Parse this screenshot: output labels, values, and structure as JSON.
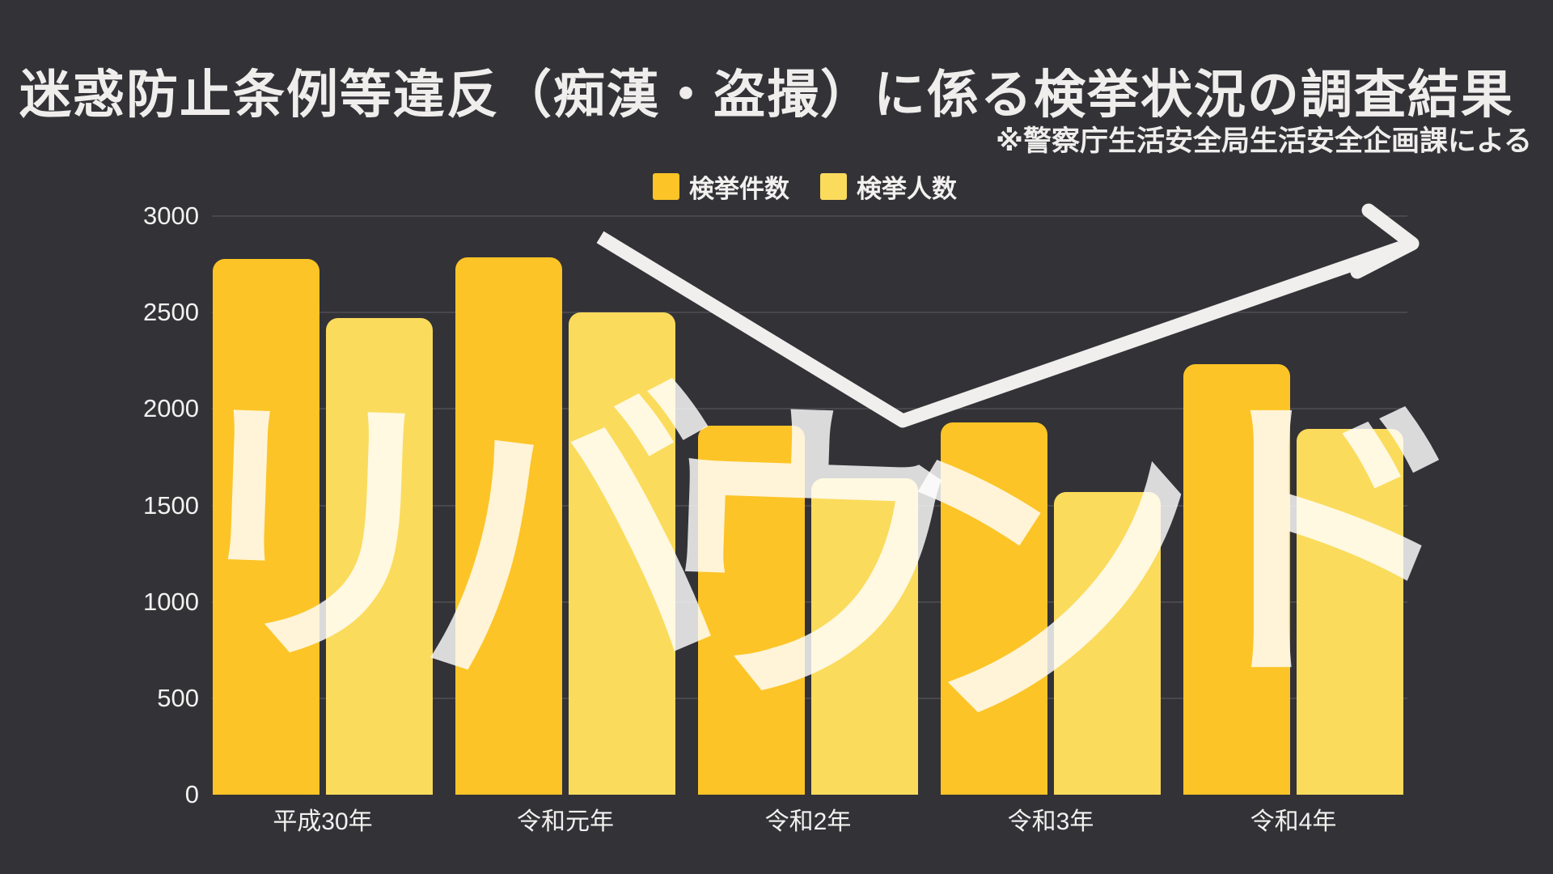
{
  "title": "迷惑防止条例等違反（痴漢・盗撮）に係る検挙状況の調査結果",
  "subtitle": "※警察庁生活安全局生活安全企画課による",
  "watermark": {
    "text": "リバウンド",
    "color": "rgba(255,255,255,0.82)"
  },
  "legend": [
    {
      "label": "検挙件数",
      "color": "#fcc426"
    },
    {
      "label": "検挙人数",
      "color": "#fbdb5c"
    }
  ],
  "colors": {
    "background": "#333237",
    "text": "#efeeec",
    "gridline": "#48474c",
    "arrow": "#f0efed",
    "series1": "#fcc426",
    "series2": "#fbdb5c"
  },
  "chart_data": {
    "type": "bar",
    "title": "迷惑防止条例等違反（痴漢・盗撮）に係る検挙状況の調査結果",
    "subtitle": "※警察庁生活安全局生活安全企画課による",
    "categories": [
      "平成30年",
      "令和元年",
      "令和2年",
      "令和3年",
      "令和4年"
    ],
    "series": [
      {
        "name": "検挙件数",
        "color": "#fcc426",
        "values": [
          2777,
          2788,
          1915,
          1931,
          2233
        ]
      },
      {
        "name": "検挙人数",
        "color": "#fbdb5c",
        "values": [
          2471,
          2500,
          1640,
          1570,
          1895
        ]
      }
    ],
    "ylim": [
      0,
      3000
    ],
    "yticks": [
      0,
      500,
      1000,
      1500,
      2000,
      2500,
      3000
    ],
    "xlabel": "",
    "ylabel": "",
    "grid": true,
    "legend_position": "top-center",
    "annotations": {
      "watermark_text": "リバウンド",
      "trend_arrow": "white arrow descending from 令和元年 to a low point at 令和3年 then rising to upper right"
    }
  }
}
